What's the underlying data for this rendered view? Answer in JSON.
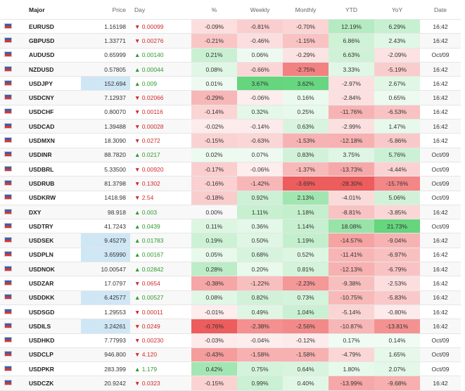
{
  "table": {
    "header": [
      "Major",
      "Price",
      "Day",
      "%",
      "Weekly",
      "Monthly",
      "YTD",
      "YoY",
      "Date"
    ],
    "rows": [
      [
        "EURUSD",
        "1.16198",
        "▼ 0.00099",
        "-0.09%",
        "-0.81%",
        "-0.70%",
        "12.19%",
        "6.29%",
        "16:42"
      ],
      [
        "GBPUSD",
        "1.33771",
        "▼ 0.00276",
        "-0.21%",
        "-0.46%",
        "-1.15%",
        "6.86%",
        "2.43%",
        "16:42"
      ],
      [
        "AUDUSD",
        "0.65999",
        "▲ 0.00140",
        "0.21%",
        "0.06%",
        "-0.29%",
        "6.63%",
        "-2.09%",
        "Oct/09"
      ],
      [
        "NZDUSD",
        "0.57805",
        "▲ 0.00044",
        "0.08%",
        "-0.66%",
        "-2.75%",
        "3.33%",
        "-5.19%",
        "16:42"
      ],
      [
        "USDJPY",
        "152.694",
        "▲ 0.009",
        "0.01%",
        "3.67%",
        "3.62%",
        "-2.97%",
        "2.67%",
        "16:42"
      ],
      [
        "USDCNY",
        "7.12937",
        "▼ 0.02066",
        "-0.29%",
        "-0.06%",
        "0.16%",
        "-2.84%",
        "0.65%",
        "16:42"
      ],
      [
        "USDCHF",
        "0.80070",
        "▼ 0.00116",
        "-0.14%",
        "0.32%",
        "0.25%",
        "-11.76%",
        "-6.53%",
        "16:42"
      ],
      [
        "USDCAD",
        "1.39488",
        "▼ 0.00028",
        "-0.02%",
        "-0.14%",
        "0.63%",
        "-2.99%",
        "1.47%",
        "16:42"
      ],
      [
        "USDMXN",
        "18.3090",
        "▼ 0.0272",
        "-0.15%",
        "-0.63%",
        "-1.53%",
        "-12.18%",
        "-5.86%",
        "16:42"
      ],
      [
        "USDINR",
        "88.7820",
        "▲ 0.0217",
        "0.02%",
        "0.07%",
        "0.83%",
        "3.75%",
        "5.76%",
        "Oct/09"
      ],
      [
        "USDBRL",
        "5.33500",
        "▼ 0.00920",
        "-0.17%",
        "-0.06%",
        "-1.37%",
        "-13.73%",
        "-4.44%",
        "Oct/09"
      ],
      [
        "USDRUB",
        "81.3798",
        "▼ 0.1302",
        "-0.16%",
        "-1.42%",
        "-3.69%",
        "-28.30%",
        "-15.76%",
        "Oct/09"
      ],
      [
        "USDKRW",
        "1418.98",
        "▼ 2.54",
        "-0.18%",
        "0.92%",
        "2.13%",
        "-4.01%",
        "5.06%",
        "Oct/09"
      ],
      [
        "DXY",
        "98.918",
        "▲ 0.003",
        "0.00%",
        "1.11%",
        "1.18%",
        "-8.81%",
        "-3.85%",
        "16:42"
      ],
      [
        "USDTRY",
        "41.7243",
        "▲ 0.0439",
        "0.11%",
        "0.36%",
        "1.14%",
        "18.08%",
        "21.73%",
        "Oct/09"
      ],
      [
        "USDSEK",
        "9.45279",
        "▲ 0.01783",
        "0.19%",
        "0.50%",
        "1.19%",
        "-14.57%",
        "-9.04%",
        "16:42"
      ],
      [
        "USDPLN",
        "3.65990",
        "▲ 0.00167",
        "0.05%",
        "0.68%",
        "0.52%",
        "-11.41%",
        "-6.97%",
        "16:42"
      ],
      [
        "USDNOK",
        "10.00547",
        "▲ 0.02842",
        "0.28%",
        "0.20%",
        "0.81%",
        "-12.13%",
        "-6.79%",
        "16:42"
      ],
      [
        "USDZAR",
        "17.0797",
        "▼ 0.0654",
        "-0.38%",
        "-1.22%",
        "-2.23%",
        "-9.38%",
        "-2.53%",
        "16:42"
      ],
      [
        "USDDKK",
        "6.42577",
        "▲ 0.00527",
        "0.08%",
        "0.82%",
        "0.73%",
        "-10.75%",
        "-5.83%",
        "16:42"
      ],
      [
        "USDSGD",
        "1.29553",
        "▼ 0.00011",
        "-0.01%",
        "0.49%",
        "1.04%",
        "-5.14%",
        "-0.80%",
        "16:42"
      ],
      [
        "USDILS",
        "3.24261",
        "▼ 0.0249",
        "-0.76%",
        "-2.38%",
        "-2.56%",
        "-10.87%",
        "-13.81%",
        "16:42"
      ],
      [
        "USDHKD",
        "7.77993",
        "▼ 0.00230",
        "-0.03%",
        "-0.04%",
        "-0.12%",
        "0.17%",
        "0.14%",
        "Oct/09"
      ],
      [
        "USDCLP",
        "946.800",
        "▼ 4.120",
        "-0.43%",
        "-1.58%",
        "-1.58%",
        "-4.79%",
        "1.65%",
        "Oct/09"
      ],
      [
        "USDPKR",
        "283.399",
        "▲ 1.179",
        "0.42%",
        "0.75%",
        "0.64%",
        "1.80%",
        "2.07%",
        "Oct/09"
      ],
      [
        "USDCZK",
        "20.9242",
        "▼ 0.0323",
        "-0.15%",
        "0.99%",
        "0.40%",
        "-13.99%",
        "-9.68%",
        "16:42"
      ]
    ]
  }
}
